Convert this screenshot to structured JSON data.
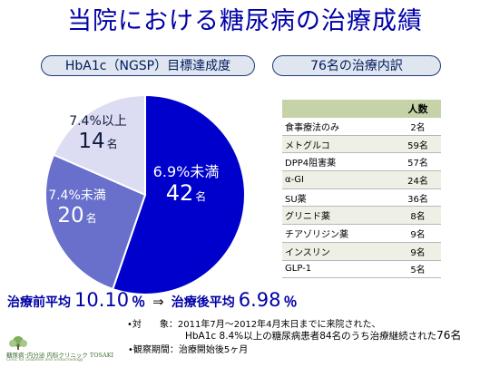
{
  "title": "当院における糖尿病の治療成績",
  "left_heading": "HbA1c（NGSP）目標達成度",
  "right_heading": "76名の治療内訳",
  "chart_data": {
    "type": "pie",
    "title": "HbA1c（NGSP）目標達成度",
    "slices": [
      {
        "label": "6.9%未満",
        "value": 42,
        "unit": "名",
        "color": "#0000cc"
      },
      {
        "label": "7.4%未満",
        "value": 20,
        "unit": "名",
        "color": "#6870cc"
      },
      {
        "label": "7.4%以上",
        "value": 14,
        "unit": "名",
        "color": "#dcdcf2"
      }
    ]
  },
  "treatment_table": {
    "header": "人数",
    "rows": [
      {
        "name": "食事療法のみ",
        "count": "2名"
      },
      {
        "name": "メトグルコ",
        "count": "59名"
      },
      {
        "name": "DPP4阻害薬",
        "count": "57名"
      },
      {
        "name": "α-GI",
        "count": "24名"
      },
      {
        "name": "SU薬",
        "count": "36名"
      },
      {
        "name": "グリニド薬",
        "count": "8名"
      },
      {
        "name": "チアゾリジン薬",
        "count": "9名"
      },
      {
        "name": "インスリン",
        "count": "9名"
      },
      {
        "name": "GLP-1",
        "count": "5名"
      }
    ]
  },
  "averages": {
    "before_label": "治療前平均",
    "before_value": "10.10",
    "before_pct": "％",
    "arrow": "⇒",
    "after_label": "治療後平均",
    "after_value": "6.98",
    "after_pct": "％"
  },
  "notes": {
    "subject": "•対　　象：2011年7月～2012年4月末日までに来院された、",
    "subject_cont_pre": "HbA1c 8.4%以上の糖尿病患者84名のうち治療継続された",
    "subject_cont_num": "76名",
    "period": "•観察期間：治療開始後5ヶ月"
  },
  "logo": {
    "name": "糖尿病･内分泌 内科クリニック TOSAKI",
    "sub": "Clinic for Diabetes and Endocrinology"
  }
}
